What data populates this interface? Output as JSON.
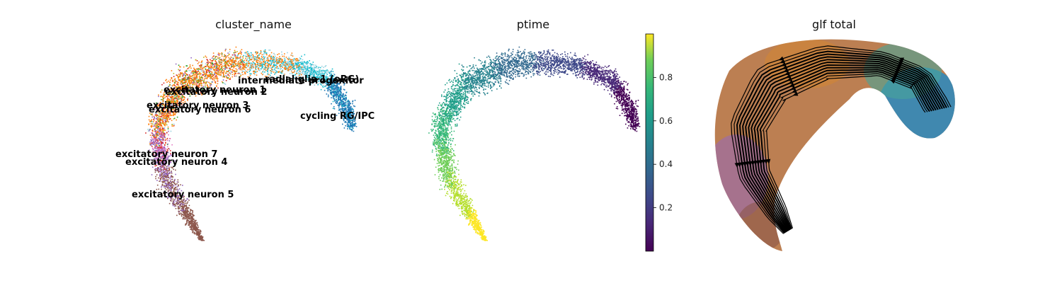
{
  "chart_data": [
    {
      "type": "scatter",
      "title": "cluster_name",
      "xlabel": "",
      "ylabel": "",
      "legend": "on data",
      "clusters": [
        {
          "name": "radial glia 1 (oRG)",
          "color": "#17becf"
        },
        {
          "name": "intermediate progenitor",
          "color": "#9ad3e0"
        },
        {
          "name": "excitatory neuron 1",
          "color": "#ff7f0e"
        },
        {
          "name": "excitatory neuron 2",
          "color": "#d62728"
        },
        {
          "name": "excitatory neuron 3",
          "color": "#2ca02c"
        },
        {
          "name": "excitatory neuron 6",
          "color": "#bcbd22"
        },
        {
          "name": "cycling RG/IPC",
          "color": "#1f77b4"
        },
        {
          "name": "excitatory neuron 7",
          "color": "#e377c2"
        },
        {
          "name": "excitatory neuron 4",
          "color": "#9467bd"
        },
        {
          "name": "excitatory neuron 5",
          "color": "#8c564b"
        }
      ]
    },
    {
      "type": "scatter",
      "title": "ptime",
      "colormap": "viridis",
      "colorbar": {
        "range": [
          0,
          1
        ],
        "ticks": [
          "0.2",
          "0.4",
          "0.6",
          "0.8"
        ],
        "tick_values": [
          0.2,
          0.4,
          0.6,
          0.8
        ]
      }
    },
    {
      "type": "scatter",
      "title": "glf total",
      "overlay": "streamlines",
      "stream_color": "#000000"
    }
  ]
}
